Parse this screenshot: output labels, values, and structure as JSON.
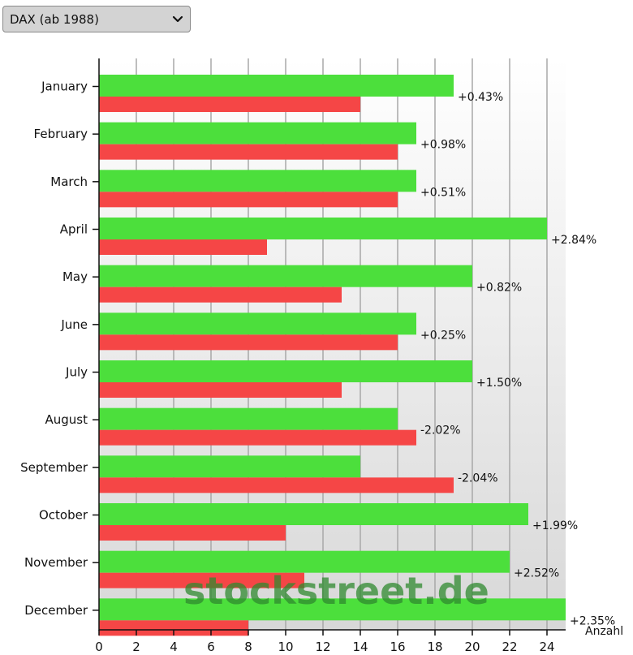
{
  "selector": {
    "selected": "DAX (ab 1988)",
    "icon": "chevron-down-icon"
  },
  "watermark": "stockstreet.de",
  "colors": {
    "positive": "#4cdf3c",
    "negative": "#f54646"
  },
  "chart_data": {
    "type": "bar",
    "orientation": "horizontal",
    "xlabel": "Anzahl",
    "xlim": [
      0,
      25
    ],
    "xticks": [
      0,
      2,
      4,
      6,
      8,
      10,
      12,
      14,
      16,
      18,
      20,
      22,
      24
    ],
    "grid": true,
    "categories": [
      "January",
      "February",
      "March",
      "April",
      "May",
      "June",
      "July",
      "August",
      "September",
      "October",
      "November",
      "December"
    ],
    "series": [
      {
        "values": [
          19,
          17,
          17,
          24,
          20,
          17,
          20,
          16,
          14,
          23,
          22,
          25
        ]
      },
      {
        "values": [
          14,
          16,
          16,
          9,
          13,
          16,
          13,
          17,
          19,
          10,
          11,
          8
        ]
      }
    ],
    "data_labels": [
      "+0.43%",
      "+0.98%",
      "+0.51%",
      "+2.84%",
      "+0.82%",
      "+0.25%",
      "+1.50%",
      "-2.02%",
      "-2.04%",
      "+1.99%",
      "+2.52%",
      "+2.35%"
    ]
  }
}
